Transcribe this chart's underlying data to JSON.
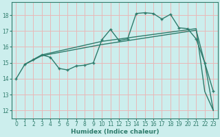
{
  "xlabel": "Humidex (Indice chaleur)",
  "bg_color": "#cceeed",
  "grid_color": "#e8b8b8",
  "line_color": "#2e7b6b",
  "xlim": [
    -0.5,
    23.5
  ],
  "ylim": [
    11.5,
    18.8
  ],
  "yticks": [
    12,
    13,
    14,
    15,
    16,
    17,
    18
  ],
  "xticks": [
    0,
    1,
    2,
    3,
    4,
    5,
    6,
    7,
    8,
    9,
    10,
    11,
    12,
    13,
    14,
    15,
    16,
    17,
    18,
    19,
    20,
    21,
    22,
    23
  ],
  "line_jagged_x": [
    0,
    1,
    2,
    3,
    4,
    5,
    6,
    7,
    8,
    9,
    10,
    11,
    12,
    13,
    14,
    15,
    16,
    17,
    18,
    19,
    20,
    21,
    22,
    23
  ],
  "line_jagged_y": [
    14.0,
    14.9,
    15.2,
    15.5,
    15.35,
    14.65,
    14.55,
    14.8,
    14.85,
    15.0,
    16.45,
    17.1,
    16.4,
    16.5,
    18.1,
    18.15,
    18.1,
    17.75,
    18.05,
    17.2,
    17.15,
    16.5,
    15.0,
    13.2
  ],
  "line_upper_x": [
    1,
    3,
    10,
    21,
    22,
    23
  ],
  "line_upper_y": [
    14.9,
    15.5,
    16.35,
    17.15,
    13.2,
    12.0
  ],
  "line_lower_x": [
    1,
    3,
    10,
    21,
    22,
    23
  ],
  "line_lower_y": [
    14.9,
    15.45,
    16.15,
    17.05,
    15.0,
    12.0
  ]
}
